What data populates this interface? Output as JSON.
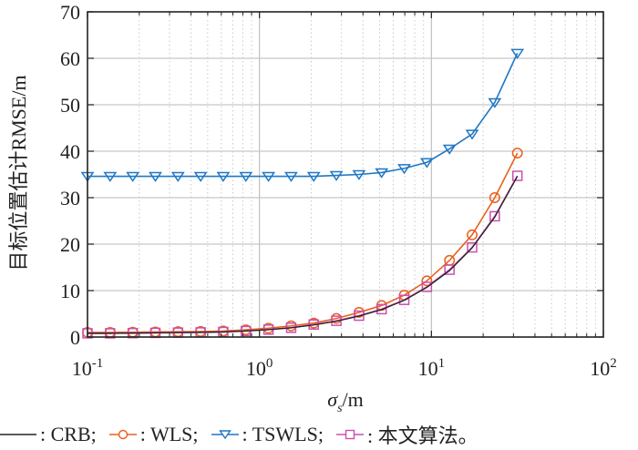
{
  "chart_data": {
    "type": "line",
    "xscale": "log",
    "xlabel": "σ_s/m",
    "xlabel_main": "σ",
    "xlabel_sub": "s",
    "xlabel_unit": "/m",
    "ylabel": "目标位置估计RMSE/m",
    "xlim": [
      0.1,
      100
    ],
    "ylim": [
      0,
      70
    ],
    "grid": true,
    "x_ticks": [
      {
        "base": "10",
        "exp": "-1",
        "value": 0.1
      },
      {
        "base": "10",
        "exp": "0",
        "value": 1
      },
      {
        "base": "10",
        "exp": "1",
        "value": 10
      },
      {
        "base": "10",
        "exp": "2",
        "value": 100
      }
    ],
    "y_ticks": [
      "0",
      "10",
      "20",
      "30",
      "40",
      "50",
      "60",
      "70"
    ],
    "x": [
      0.1,
      0.1354,
      0.1833,
      0.2482,
      0.336,
      0.4549,
      0.6158,
      0.8337,
      1.1288,
      1.5283,
      2.0691,
      2.8013,
      3.7927,
      5.1348,
      6.9519,
      9.4121,
      12.743,
      17.252,
      23.357,
      31.623
    ],
    "series": [
      {
        "name": "CRB",
        "color": "#222222",
        "marker": "none",
        "values": [
          0.8,
          0.8,
          0.85,
          0.9,
          0.95,
          1.0,
          1.1,
          1.3,
          1.6,
          2.0,
          2.6,
          3.4,
          4.5,
          5.9,
          7.9,
          10.7,
          14.3,
          19.2,
          25.8,
          34.6
        ]
      },
      {
        "name": "WLS",
        "color": "#e8601c",
        "marker": "circle",
        "values": [
          1.0,
          1.0,
          1.05,
          1.1,
          1.15,
          1.2,
          1.3,
          1.55,
          1.9,
          2.4,
          3.0,
          4.0,
          5.3,
          6.8,
          9.0,
          12.1,
          16.5,
          22.0,
          30.0,
          39.6
        ]
      },
      {
        "name": "TSWLS",
        "color": "#1f77c4",
        "marker": "triangle-down",
        "values": [
          34.6,
          34.6,
          34.6,
          34.6,
          34.6,
          34.6,
          34.6,
          34.6,
          34.6,
          34.6,
          34.6,
          34.8,
          35.0,
          35.4,
          36.3,
          37.6,
          40.5,
          43.7,
          50.5,
          61.1
        ]
      },
      {
        "name": "本文算法",
        "color": "#cc4fb0",
        "marker": "square",
        "values": [
          0.8,
          0.8,
          0.85,
          0.9,
          0.95,
          1.0,
          1.1,
          1.3,
          1.6,
          2.0,
          2.7,
          3.5,
          4.6,
          6.0,
          8.0,
          10.8,
          14.5,
          19.3,
          26.0,
          34.7
        ]
      }
    ],
    "legend": {
      "placement": "bottom",
      "items": [
        {
          "label": ": CRB;",
          "color": "#222222",
          "marker": "none"
        },
        {
          "label": ": WLS;",
          "color": "#e8601c",
          "marker": "circle"
        },
        {
          "label": ": TSWLS;",
          "color": "#1f77c4",
          "marker": "triangle-down"
        },
        {
          "label": ": 本文算法。",
          "color": "#cc4fb0",
          "marker": "square"
        }
      ]
    }
  }
}
